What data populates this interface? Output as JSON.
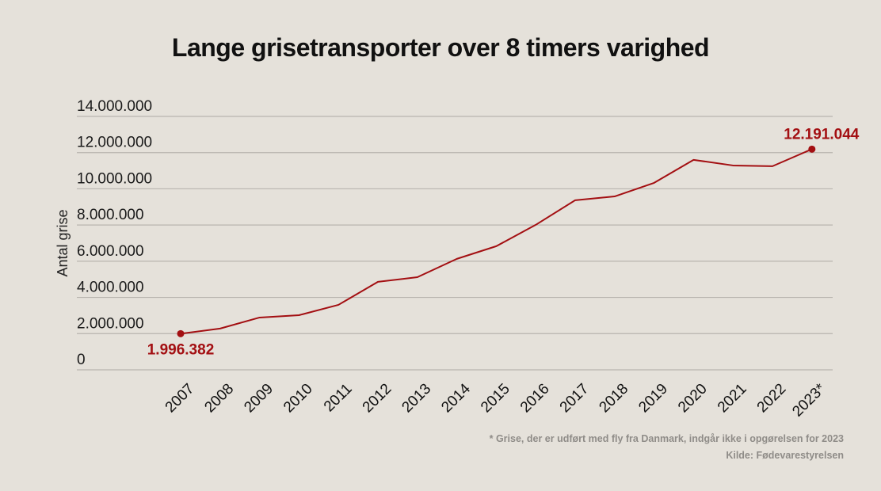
{
  "chart_data": {
    "type": "line",
    "title": "Lange grisetransporter over 8 timers varighed",
    "xlabel": "",
    "ylabel": "Antal grise",
    "ylim": [
      0,
      14000000
    ],
    "grid": true,
    "yticks": [
      0,
      2000000,
      4000000,
      6000000,
      8000000,
      10000000,
      12000000,
      14000000
    ],
    "ytick_labels": [
      "0",
      "2.000.000",
      "4.000.000",
      "6.000.000",
      "8.000.000",
      "10.000.000",
      "12.000.000",
      "14.000.000"
    ],
    "categories": [
      "2007",
      "2008",
      "2009",
      "2010",
      "2011",
      "2012",
      "2013",
      "2014",
      "2015",
      "2016",
      "2017",
      "2018",
      "2019",
      "2020",
      "2021",
      "2022",
      "2023*"
    ],
    "series": [
      {
        "name": "Antal grise",
        "color": "#a30f12",
        "values": [
          1996382,
          2280000,
          2890000,
          3020000,
          3590000,
          4860000,
          5120000,
          6130000,
          6830000,
          8010000,
          9370000,
          9580000,
          10330000,
          11600000,
          11290000,
          11250000,
          12191044
        ]
      }
    ],
    "annotations": [
      {
        "category": "2007",
        "text": "1.996.382",
        "position": "below"
      },
      {
        "category": "2023*",
        "text": "12.191.044",
        "position": "above"
      }
    ]
  },
  "footnotes": {
    "note": "* Grise, der er udført med fly fra Danmark, indgår ikke i opgørelsen for 2023",
    "source": "Kilde: Fødevarestyrelsen"
  }
}
